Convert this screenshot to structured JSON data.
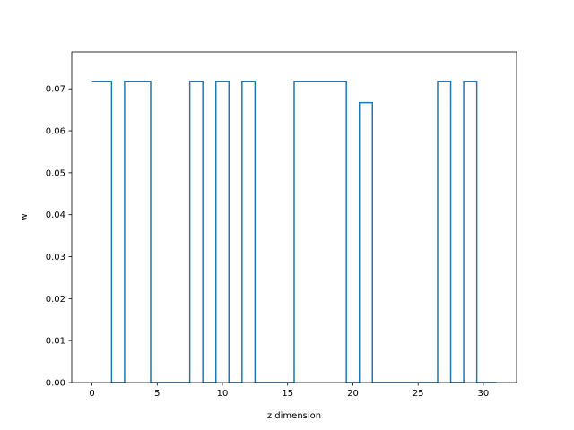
{
  "chart_data": {
    "type": "line",
    "drawstyle": "steps-mid",
    "xlabel": "z dimension",
    "ylabel": "w",
    "xlim": [
      -1.55,
      32.55
    ],
    "ylim": [
      0,
      0.0788
    ],
    "xticks": [
      0,
      5,
      10,
      15,
      20,
      25,
      30
    ],
    "yticks": [
      0.0,
      0.01,
      0.02,
      0.03,
      0.04,
      0.05,
      0.06,
      0.07
    ],
    "ytick_labels": [
      "0.00",
      "0.01",
      "0.02",
      "0.03",
      "0.04",
      "0.05",
      "0.06",
      "0.07"
    ],
    "grid": false,
    "series": [
      {
        "color": "#1f77b4",
        "x": [
          0,
          1,
          2,
          3,
          4,
          5,
          6,
          7,
          8,
          9,
          10,
          11,
          12,
          13,
          14,
          15,
          16,
          17,
          18,
          19,
          20,
          21,
          22,
          23,
          24,
          25,
          26,
          27,
          28,
          29,
          30,
          31
        ],
        "y": [
          0.0718,
          0.0718,
          0,
          0.0718,
          0.0718,
          0,
          0,
          0,
          0.0718,
          0,
          0.0718,
          0,
          0.0718,
          0,
          0,
          0,
          0.0718,
          0.0718,
          0.0718,
          0.0718,
          0,
          0.0667,
          0,
          0,
          0,
          0,
          0,
          0.0718,
          0,
          0.0718,
          0,
          0
        ]
      }
    ]
  }
}
